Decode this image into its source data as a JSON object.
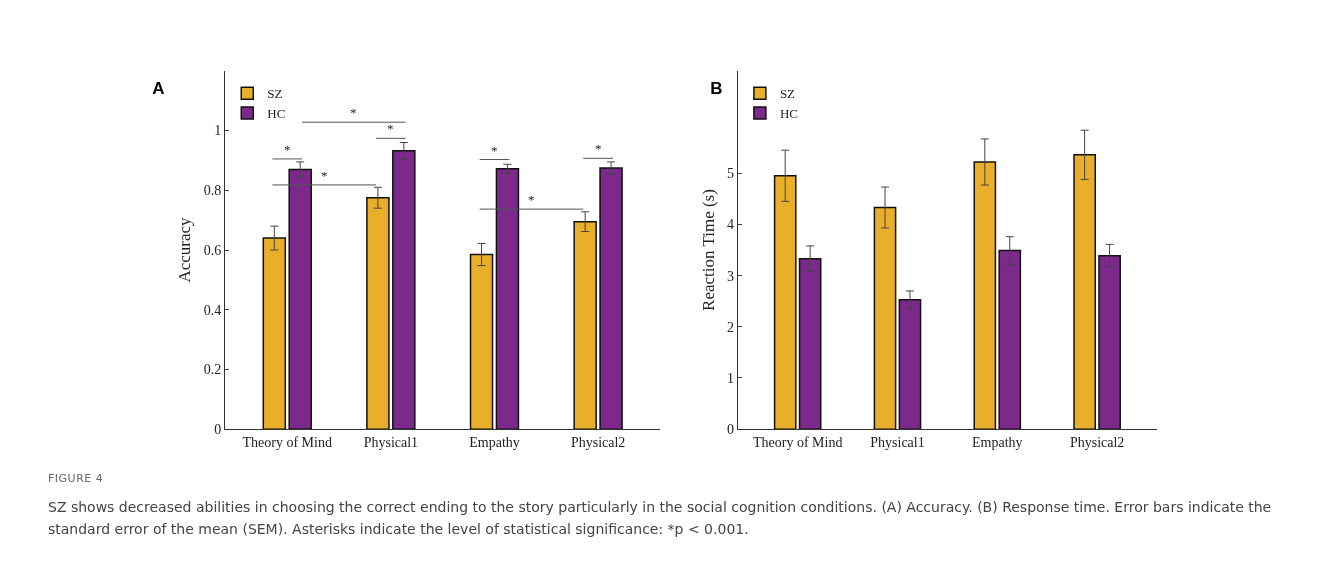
{
  "chart_data": [
    {
      "type": "bar",
      "title": "A",
      "ylabel": "Accuracy",
      "categories": [
        "Theory of Mind",
        "Physical1",
        "Empathy",
        "Physical2"
      ],
      "series": [
        {
          "name": "SZ",
          "color": "#e9ae2a",
          "values": [
            0.64,
            0.775,
            0.585,
            0.695
          ],
          "errors": [
            0.04,
            0.035,
            0.037,
            0.033
          ]
        },
        {
          "name": "HC",
          "color": "#7b2a8b",
          "values": [
            0.87,
            0.932,
            0.872,
            0.875
          ],
          "errors": [
            0.025,
            0.028,
            0.015,
            0.02
          ]
        }
      ],
      "ylim": [
        0,
        1.2
      ],
      "yticks": [
        0,
        0.2,
        0.4,
        0.6,
        0.8,
        1
      ],
      "grid": false,
      "legend": "top left",
      "annotations": [
        "*",
        "*",
        "*",
        "*",
        "*",
        "*",
        "*"
      ]
    },
    {
      "type": "bar",
      "title": "B",
      "ylabel": "Reaction Time (s)",
      "categories": [
        "Theory of Mind",
        "Physical1",
        "Empathy",
        "Physical2"
      ],
      "series": [
        {
          "name": "SZ",
          "color": "#e9ae2a",
          "values": [
            4.95,
            4.33,
            5.22,
            5.36
          ],
          "errors": [
            0.5,
            0.4,
            0.45,
            0.48
          ]
        },
        {
          "name": "HC",
          "color": "#7b2a8b",
          "values": [
            3.33,
            2.53,
            3.49,
            3.39
          ],
          "errors": [
            0.25,
            0.17,
            0.27,
            0.22
          ]
        }
      ],
      "ylim": [
        0,
        7
      ],
      "yticks": [
        0,
        1,
        2,
        3,
        4,
        5
      ],
      "grid": false,
      "legend": "top left",
      "annotations": [
        "FIGURE 4",
        "SZ shows decreased abilities in choosing the correct ending to the story particularly in the social cognition conditions. (A) Accuracy. (B) Response time. Error bars indicate the standard error of the mean (SEM). Asterisks indicate the level of statistical significance: *p < 0.001."
      ]
    }
  ]
}
